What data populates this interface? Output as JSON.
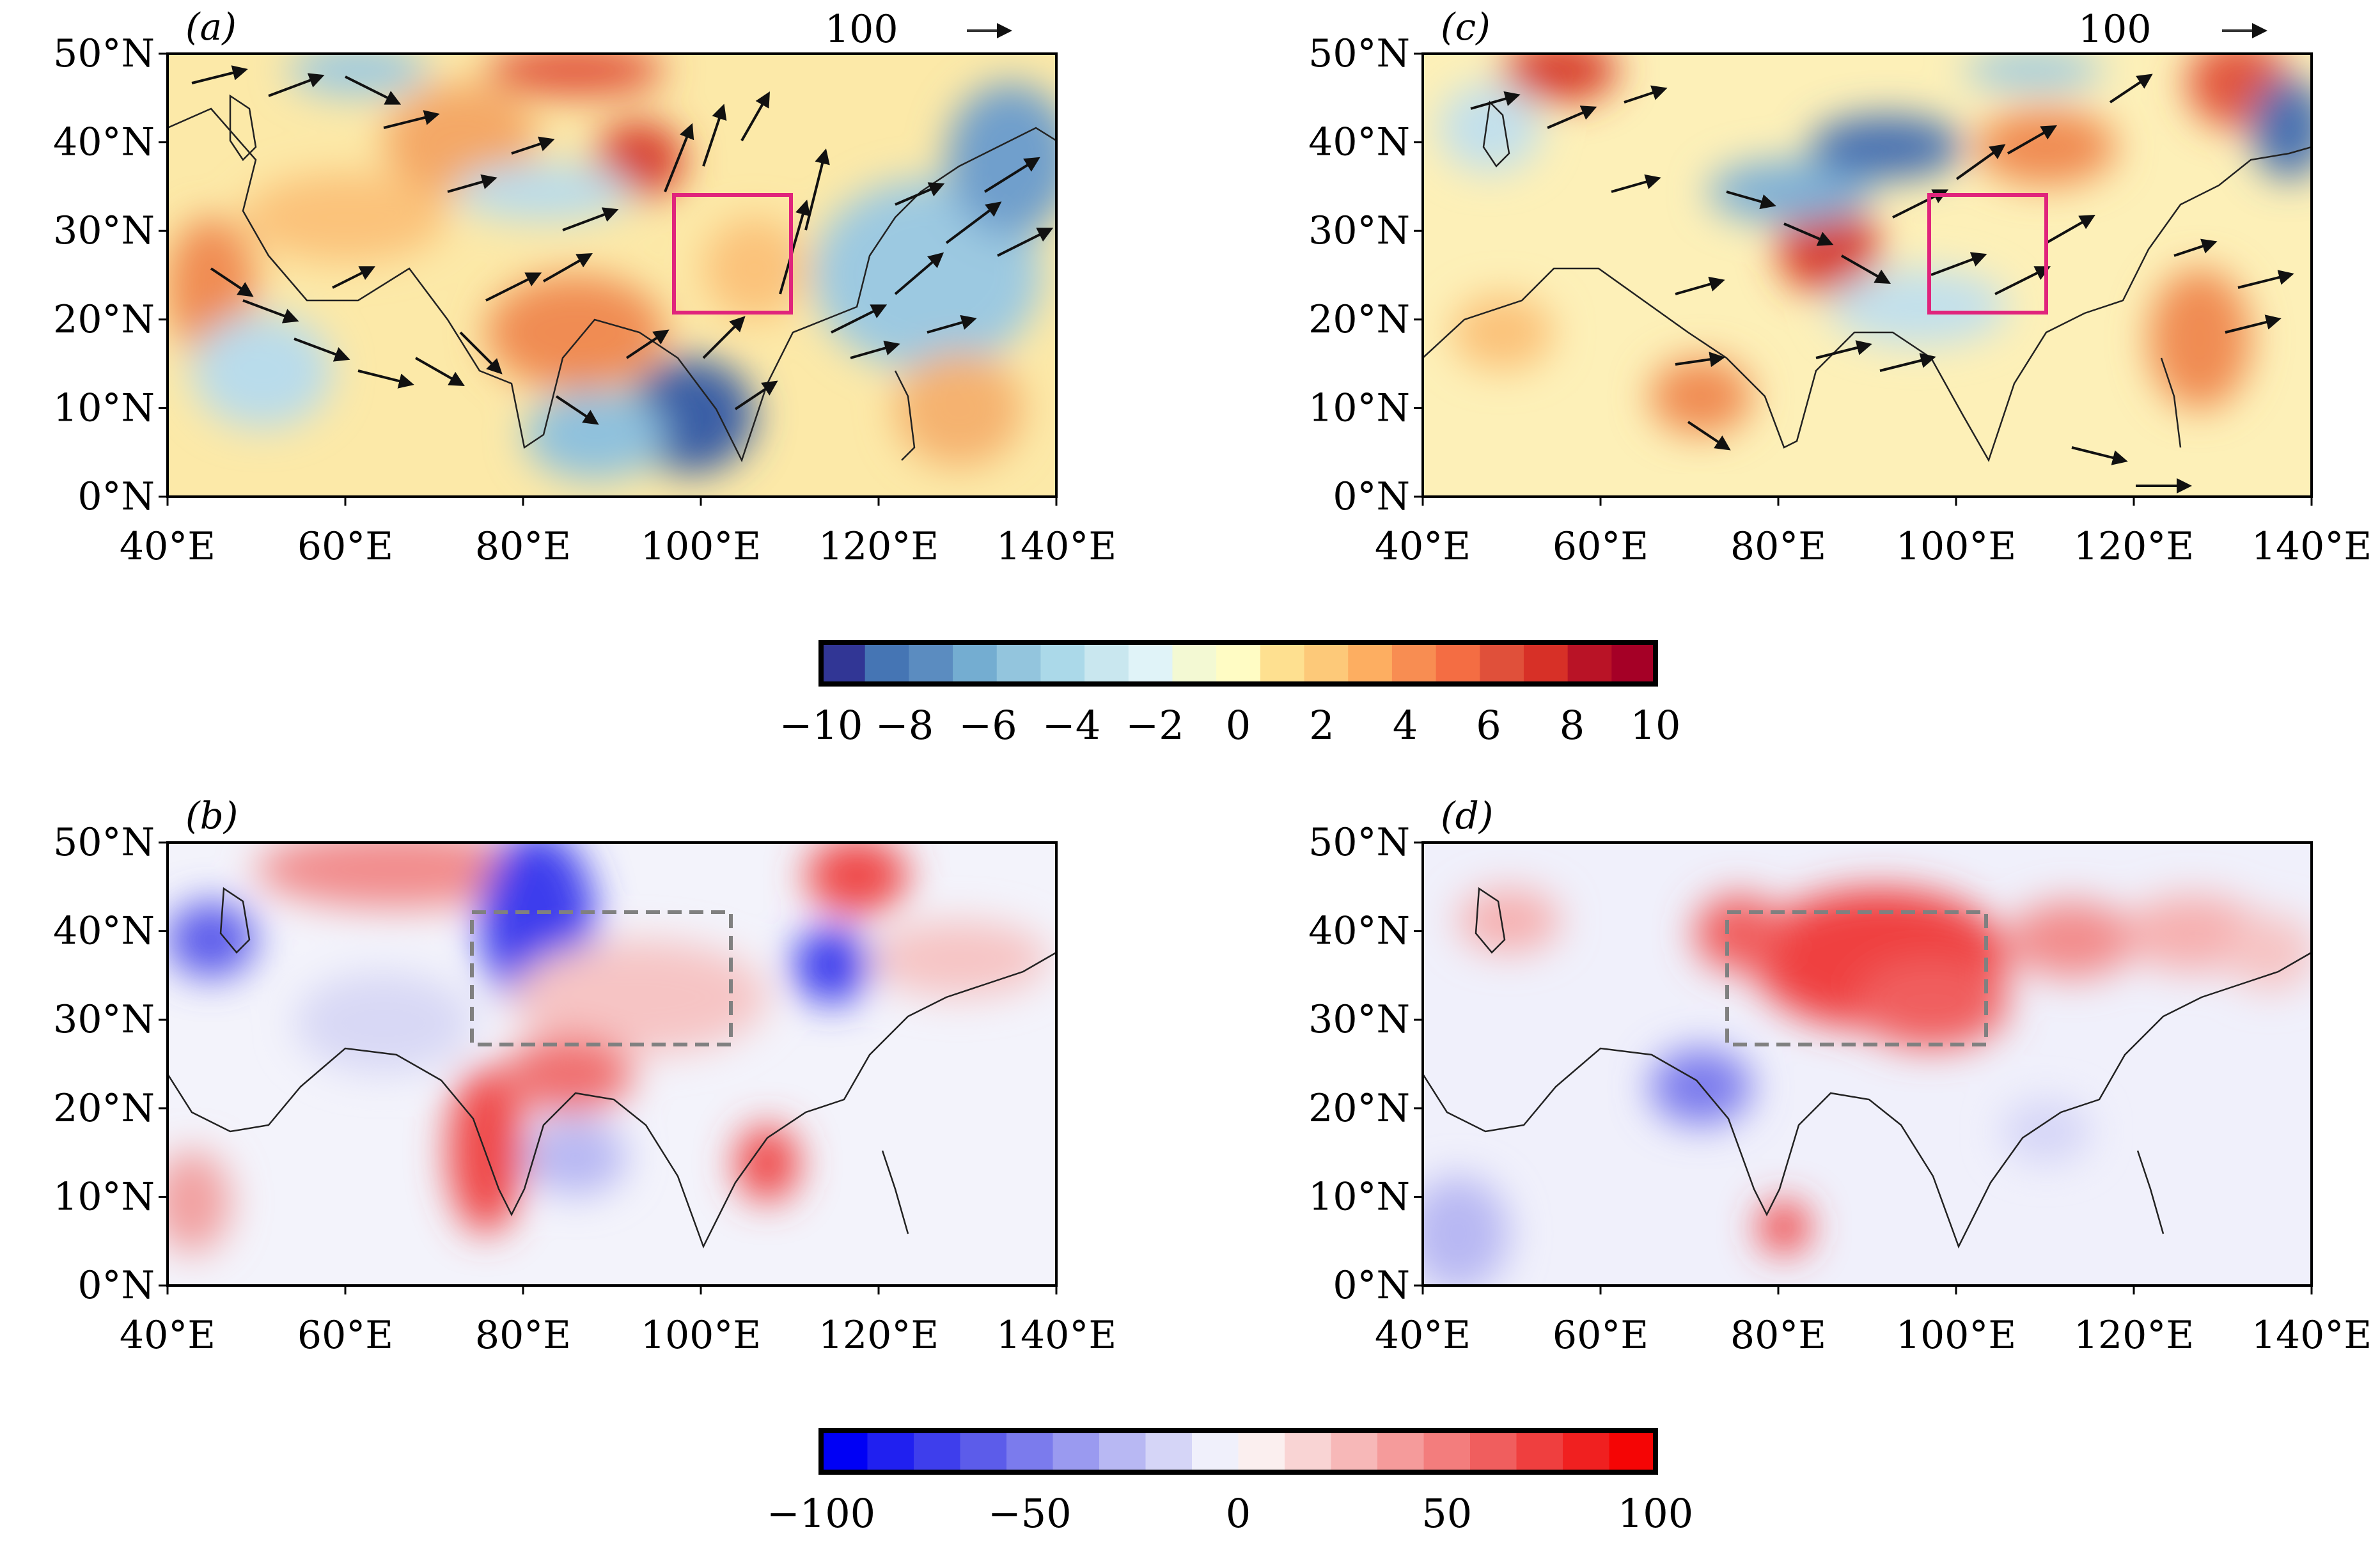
{
  "panels": [
    {
      "label": "(a)",
      "arrow_reference": "100",
      "map": "wind-anomaly"
    },
    {
      "label": "(c)",
      "arrow_reference": "100",
      "map": "wind-anomaly"
    },
    {
      "label": "(b)",
      "box": "dashed",
      "map": "percent-anomaly"
    },
    {
      "label": "(d)",
      "box": "dashed",
      "map": "percent-anomaly"
    }
  ],
  "axes": {
    "lat_ticks": [
      "50°N",
      "40°N",
      "30°N",
      "20°N",
      "10°N",
      "0°N"
    ],
    "lon_ticks": [
      "40°E",
      "60°E",
      "80°E",
      "100°E",
      "120°E",
      "140°E"
    ],
    "lon_range": [
      40,
      140
    ],
    "lat_range": [
      0,
      50
    ]
  },
  "colorbar_top": {
    "ticks": [
      "−10",
      "−8",
      "−6",
      "−4",
      "−2",
      "0",
      "2",
      "4",
      "6",
      "8",
      "10"
    ],
    "colors": [
      "#313695",
      "#4575b4",
      "#5b8cc0",
      "#74add1",
      "#93c5dd",
      "#abd9e9",
      "#c9e7ef",
      "#e0f3f8",
      "#f3f9d3",
      "#fffcc4",
      "#fee090",
      "#fdc979",
      "#fdae61",
      "#f88d52",
      "#f46d43",
      "#e0503a",
      "#d73027",
      "#b91326",
      "#a50026"
    ]
  },
  "colorbar_bottom": {
    "ticks": [
      "−100",
      "−50",
      "0",
      "50",
      "100"
    ],
    "colors": [
      "#0000f5",
      "#2020f0",
      "#3e3eec",
      "#5c5cea",
      "#7b7bed",
      "#9a9af0",
      "#b8b8f3",
      "#d5d5f7",
      "#f0f0fb",
      "#fbefef",
      "#f9d4d4",
      "#f7b8b8",
      "#f59b9b",
      "#f37d7d",
      "#f05e5e",
      "#ef3f3f",
      "#f02020",
      "#f50505"
    ]
  },
  "colors": {
    "highlight_box": "#e0247c",
    "dashed_box": "#808080"
  }
}
